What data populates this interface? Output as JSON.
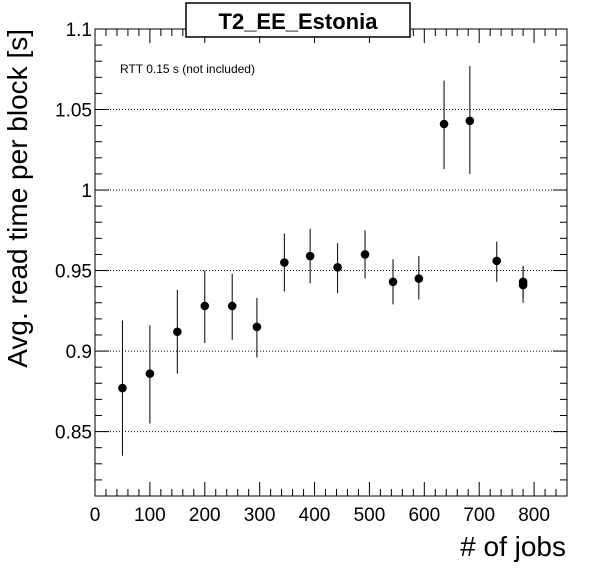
{
  "chart_data": {
    "type": "scatter",
    "title": "T2_EE_Estonia",
    "annotation": "RTT 0.15 s (not included)",
    "xlabel": "# of jobs",
    "ylabel": "Avg. read time per block [s]",
    "xlim": [
      0,
      860
    ],
    "ylim": [
      0.81,
      1.1
    ],
    "x_ticks": [
      0,
      100,
      200,
      300,
      400,
      500,
      600,
      700,
      800
    ],
    "y_ticks": [
      0.85,
      0.9,
      0.95,
      1,
      1.05,
      1.1
    ],
    "y_tick_labels": [
      "0.85",
      "0.9",
      "0.95",
      "1",
      "1.05",
      "1.1"
    ],
    "grid": "horizontal dotted at major y ticks",
    "points": [
      {
        "x": 50,
        "y": 0.877,
        "ylow": 0.835,
        "yhigh": 0.919
      },
      {
        "x": 100,
        "y": 0.886,
        "ylow": 0.855,
        "yhigh": 0.916
      },
      {
        "x": 150,
        "y": 0.912,
        "ylow": 0.886,
        "yhigh": 0.938
      },
      {
        "x": 200,
        "y": 0.928,
        "ylow": 0.905,
        "yhigh": 0.95
      },
      {
        "x": 250,
        "y": 0.928,
        "ylow": 0.907,
        "yhigh": 0.948
      },
      {
        "x": 295,
        "y": 0.915,
        "ylow": 0.896,
        "yhigh": 0.933
      },
      {
        "x": 345,
        "y": 0.955,
        "ylow": 0.937,
        "yhigh": 0.973
      },
      {
        "x": 392,
        "y": 0.959,
        "ylow": 0.942,
        "yhigh": 0.976
      },
      {
        "x": 442,
        "y": 0.952,
        "ylow": 0.936,
        "yhigh": 0.967
      },
      {
        "x": 492,
        "y": 0.96,
        "ylow": 0.945,
        "yhigh": 0.975
      },
      {
        "x": 543,
        "y": 0.943,
        "ylow": 0.929,
        "yhigh": 0.957
      },
      {
        "x": 590,
        "y": 0.945,
        "ylow": 0.932,
        "yhigh": 0.959
      },
      {
        "x": 636,
        "y": 1.041,
        "ylow": 1.013,
        "yhigh": 1.068
      },
      {
        "x": 683,
        "y": 1.043,
        "ylow": 1.01,
        "yhigh": 1.077
      },
      {
        "x": 732,
        "y": 0.956,
        "ylow": 0.943,
        "yhigh": 0.968
      },
      {
        "x": 780,
        "y": 0.943,
        "ylow": 0.933,
        "yhigh": 0.953
      },
      {
        "x": 780,
        "y": 0.941,
        "ylow": 0.93,
        "yhigh": 0.952
      }
    ],
    "marker_color": "#000000",
    "grid_color": "#000000"
  }
}
